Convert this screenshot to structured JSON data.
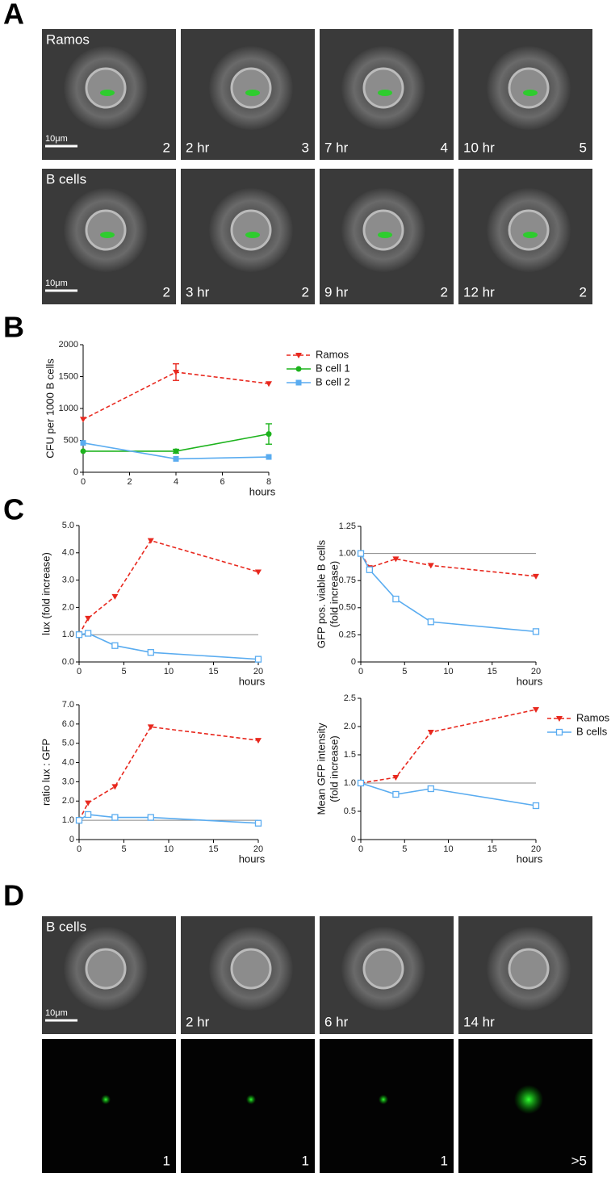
{
  "panel_labels": [
    "A",
    "B",
    "C",
    "D"
  ],
  "panel_a": {
    "rows": [
      {
        "label": "Ramos",
        "scale_bar": "10μm",
        "times": [
          null,
          "2 hr",
          "7 hr",
          "10 hr"
        ],
        "counts": [
          2,
          3,
          4,
          5
        ]
      },
      {
        "label": "B cells",
        "scale_bar": "10μm",
        "times": [
          null,
          "3 hr",
          "9 hr",
          "12 hr"
        ],
        "counts": [
          2,
          2,
          2,
          2
        ]
      }
    ]
  },
  "panel_d": {
    "rows": [
      {
        "label": "B cells",
        "scale_bar": "10μm",
        "times": [
          null,
          "2 hr",
          "6 hr",
          "14 hr"
        ]
      },
      {
        "counts": [
          1,
          1,
          1,
          ">5"
        ]
      }
    ]
  },
  "chart_data": [
    {
      "type": "line",
      "xlabel": "hours",
      "ylabel": "CFU per 1000 B cells",
      "xlim": [
        0,
        8
      ],
      "ylim": [
        0,
        2000
      ],
      "xticks": [
        0,
        2,
        4,
        6,
        8
      ],
      "yticks": [
        0,
        500,
        1000,
        1500,
        2000
      ],
      "legend": true,
      "series": [
        {
          "name": "Ramos",
          "color": "#e8281e",
          "marker": "triangle-down",
          "dashed": true,
          "x": [
            0,
            4,
            8
          ],
          "values": [
            830,
            1570,
            1390
          ],
          "errors": [
            null,
            130,
            null
          ]
        },
        {
          "name": "B cell 1",
          "color": "#1db31d",
          "marker": "circle",
          "dashed": false,
          "x": [
            0,
            4,
            8
          ],
          "values": [
            330,
            330,
            600
          ],
          "errors": [
            null,
            30,
            160
          ]
        },
        {
          "name": "B cell 2",
          "color": "#5aacf0",
          "marker": "square",
          "dashed": false,
          "x": [
            0,
            4,
            8
          ],
          "values": [
            460,
            210,
            240
          ]
        }
      ]
    },
    {
      "type": "line",
      "xlabel": "hours",
      "ylabel": "lux  (fold  increase)",
      "xlim": [
        0,
        20
      ],
      "ylim": [
        0,
        5
      ],
      "xticks": [
        0,
        5,
        10,
        15,
        20
      ],
      "yticks": [
        {
          "value": 0,
          "label": "0.0"
        },
        {
          "value": 1,
          "label": "1.0"
        },
        {
          "value": 2,
          "label": "2.0"
        },
        {
          "value": 3,
          "label": "3.0"
        },
        {
          "value": 4,
          "label": "4.0"
        },
        {
          "value": 5,
          "label": "5.0"
        }
      ],
      "hline": 1,
      "legend": false,
      "series": [
        {
          "name": "Ramos",
          "color": "#e8281e",
          "marker": "triangle-down",
          "dashed": true,
          "x": [
            0,
            1,
            4,
            8,
            20
          ],
          "values": [
            1,
            1.6,
            2.4,
            4.45,
            3.3
          ]
        },
        {
          "name": "B cells",
          "color": "#5aacf0",
          "marker": "square-open",
          "dashed": false,
          "x": [
            0,
            1,
            4,
            8,
            20
          ],
          "values": [
            1,
            1.05,
            0.6,
            0.35,
            0.1
          ]
        }
      ]
    },
    {
      "type": "line",
      "xlabel": "hours",
      "ylabel": [
        "GFP pos. viable B cells",
        "(fold  increase)"
      ],
      "xlim": [
        0,
        20
      ],
      "ylim": [
        0,
        1.25
      ],
      "xticks": [
        0,
        5,
        10,
        15,
        20
      ],
      "yticks": [
        0,
        0.25,
        {
          "value": 0.5,
          "label": "0.50"
        },
        0.75,
        {
          "value": 1,
          "label": "1.00"
        },
        1.25
      ],
      "hline": 1,
      "legend": false,
      "series": [
        {
          "name": "Ramos",
          "color": "#e8281e",
          "marker": "triangle-down",
          "dashed": true,
          "x": [
            0,
            1,
            4,
            8,
            20
          ],
          "values": [
            1,
            0.87,
            0.95,
            0.89,
            0.79
          ]
        },
        {
          "name": "B cells",
          "color": "#5aacf0",
          "marker": "square-open",
          "dashed": false,
          "x": [
            0,
            1,
            4,
            8,
            20
          ],
          "values": [
            1,
            0.85,
            0.58,
            0.37,
            0.28
          ]
        }
      ]
    },
    {
      "type": "line",
      "xlabel": "hours",
      "ylabel": "ratio lux : GFP",
      "xlim": [
        0,
        20
      ],
      "ylim": [
        0,
        7
      ],
      "xticks": [
        0,
        5,
        10,
        15,
        20
      ],
      "yticks": [
        0,
        {
          "value": 1,
          "label": "1.0"
        },
        {
          "value": 2,
          "label": "2.0"
        },
        {
          "value": 3,
          "label": "3.0"
        },
        {
          "value": 4,
          "label": "4.0"
        },
        {
          "value": 5,
          "label": "5.0"
        },
        {
          "value": 6,
          "label": "6.0"
        },
        {
          "value": 7,
          "label": "7.0"
        }
      ],
      "hline": 1,
      "legend": false,
      "series": [
        {
          "name": "Ramos",
          "color": "#e8281e",
          "marker": "triangle-down",
          "dashed": true,
          "x": [
            0,
            1,
            4,
            8,
            20
          ],
          "values": [
            1,
            1.9,
            2.75,
            5.85,
            5.15
          ]
        },
        {
          "name": "B cells",
          "color": "#5aacf0",
          "marker": "square-open",
          "dashed": false,
          "x": [
            0,
            1,
            4,
            8,
            20
          ],
          "values": [
            1,
            1.3,
            1.15,
            1.15,
            0.85
          ]
        }
      ]
    },
    {
      "type": "line",
      "xlabel": "hours",
      "ylabel": [
        "Mean GFP intensity",
        "(fold  increase)"
      ],
      "xlim": [
        0,
        20
      ],
      "ylim": [
        0,
        2.5
      ],
      "xticks": [
        0,
        5,
        10,
        15,
        20
      ],
      "yticks": [
        0,
        0.5,
        {
          "value": 1,
          "label": "1.0"
        },
        1.5,
        {
          "value": 2,
          "label": "2.0"
        },
        2.5
      ],
      "hline": 1,
      "legend": true,
      "series": [
        {
          "name": "Ramos",
          "color": "#e8281e",
          "marker": "triangle-down",
          "dashed": true,
          "x": [
            0,
            4,
            8,
            20
          ],
          "values": [
            1,
            1.1,
            1.9,
            2.3
          ]
        },
        {
          "name": "B cells",
          "color": "#5aacf0",
          "marker": "square-open",
          "dashed": false,
          "x": [
            0,
            4,
            8,
            20
          ],
          "values": [
            1,
            0.8,
            0.9,
            0.6
          ]
        }
      ]
    }
  ]
}
